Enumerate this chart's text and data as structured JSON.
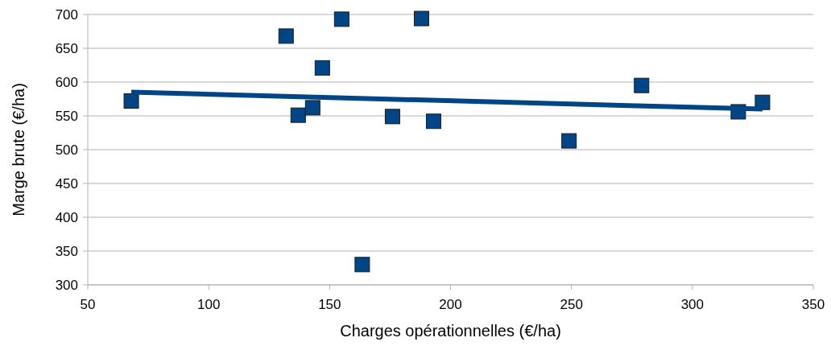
{
  "chart_data": {
    "type": "scatter",
    "xlabel": "Charges opérationnelles (€/ha)",
    "ylabel": "Marge brute (€/ha)",
    "xlim": [
      50,
      350
    ],
    "xticks": [
      50,
      100,
      150,
      200,
      250,
      300,
      350
    ],
    "ylim": [
      300,
      700
    ],
    "yticks": [
      300,
      350,
      400,
      450,
      500,
      550,
      600,
      650,
      700
    ],
    "grid": "y",
    "series": [
      {
        "color": "#004586",
        "marker": "square",
        "x": [
          68,
          132,
          155,
          188,
          147,
          137,
          143,
          176,
          193,
          163.5,
          249,
          279,
          319,
          329
        ],
        "values": [
          572,
          668,
          693,
          694,
          621,
          551,
          562,
          549,
          542,
          330,
          513,
          595,
          556,
          570
        ]
      },
      {
        "type": "line",
        "color": "#004586",
        "x": [
          68,
          329
        ],
        "values": [
          585,
          560
        ]
      }
    ]
  }
}
